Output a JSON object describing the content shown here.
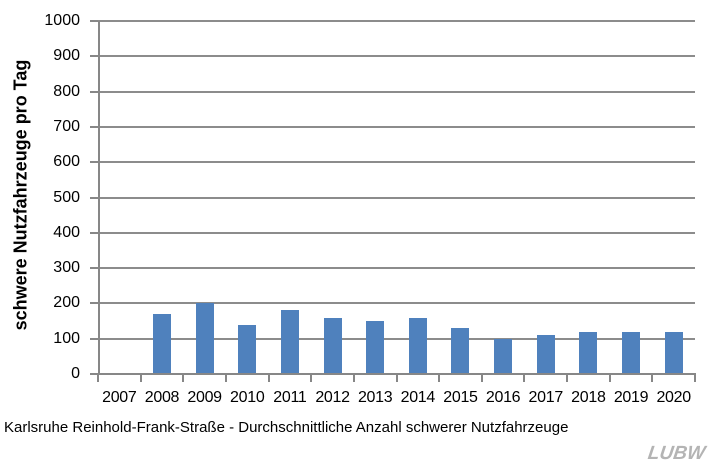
{
  "chart_data": {
    "type": "bar",
    "categories": [
      "2007",
      "2008",
      "2009",
      "2010",
      "2011",
      "2012",
      "2013",
      "2014",
      "2015",
      "2016",
      "2017",
      "2018",
      "2019",
      "2020"
    ],
    "values": [
      0,
      170,
      200,
      140,
      180,
      160,
      150,
      160,
      130,
      100,
      110,
      120,
      120,
      120
    ],
    "title": "Karlsruhe Reinhold-Frank-Straße - Durchschnittliche Anzahl schwerer Nutzfahrzeuge",
    "xlabel": "",
    "ylabel": "schwere Nutzfahrzeuge pro Tag",
    "ylim": [
      0,
      1000
    ],
    "ytick_step": 100,
    "grid": true,
    "legend": false,
    "bar_color": "#4F81BD",
    "axis_color": "#878787",
    "gridline_color": "#8c8c8c"
  },
  "footer": {
    "logo_text": "LUBW"
  }
}
